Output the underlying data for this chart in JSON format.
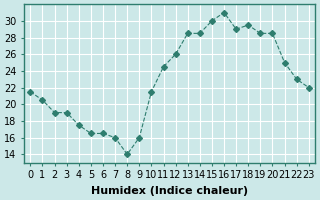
{
  "x": [
    0,
    1,
    2,
    3,
    4,
    5,
    6,
    7,
    8,
    9,
    10,
    11,
    12,
    13,
    14,
    15,
    16,
    17,
    18,
    19,
    20,
    21,
    22,
    23
  ],
  "y": [
    21.5,
    20.5,
    19.0,
    19.0,
    17.5,
    16.5,
    16.5,
    16.0,
    14.0,
    16.0,
    21.5,
    24.5,
    26.0,
    28.5,
    28.5,
    30.0,
    31.0,
    29.0,
    29.5,
    28.5,
    28.5,
    25.0,
    23.0,
    22.0
  ],
  "line_color": "#2e7d6e",
  "marker": "D",
  "marker_size": 3,
  "line_width": 0.8,
  "bg_color": "#cce8e8",
  "grid_color": "#ffffff",
  "xlabel": "Humidex (Indice chaleur)",
  "ylabel": "",
  "title": "",
  "ylim": [
    13,
    32
  ],
  "xlim": [
    -0.5,
    23.5
  ],
  "yticks": [
    14,
    16,
    18,
    20,
    22,
    24,
    26,
    28,
    30
  ],
  "xtick_labels": [
    "0",
    "1",
    "2",
    "3",
    "4",
    "5",
    "6",
    "7",
    "8",
    "9",
    "10",
    "11",
    "12",
    "13",
    "14",
    "15",
    "16",
    "17",
    "18",
    "19",
    "20",
    "21",
    "22",
    "23"
  ],
  "tick_fontsize": 7,
  "label_fontsize": 8,
  "spine_color": "#2e7d6e"
}
